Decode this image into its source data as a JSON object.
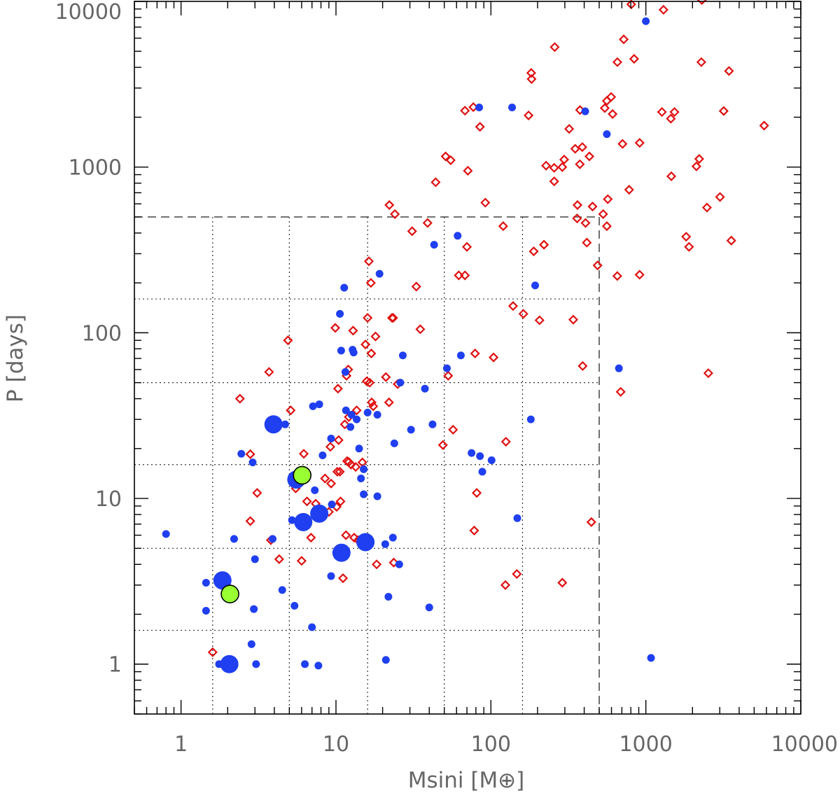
{
  "chart_data": {
    "type": "scatter",
    "title": "",
    "xlabel": "Msini [M⊕]",
    "ylabel": "P [days]",
    "xscale": "log",
    "yscale": "log",
    "xlim": [
      0.5,
      10000
    ],
    "ylim": [
      0.5,
      10000
    ],
    "x_ticks": [
      1,
      10,
      100,
      1000,
      10000
    ],
    "y_ticks": [
      1,
      10,
      100,
      1000,
      10000
    ],
    "x_tick_labels": [
      "1",
      "10",
      "100",
      "1000",
      "10000"
    ],
    "y_tick_labels": [
      "1",
      "10",
      "100",
      "1000",
      "10000"
    ],
    "grid": {
      "outer_box_dashed": {
        "x_max": 500,
        "y_max": 500
      },
      "dotted_x": [
        1.6,
        5,
        16,
        50,
        160
      ],
      "dotted_y": [
        1.6,
        5,
        16,
        50,
        160
      ]
    },
    "colors": {
      "blue": "#1f3ff0",
      "red": "#e01010",
      "green": "#99ff33",
      "axis": "#000000",
      "text": "#666666"
    },
    "series": [
      {
        "marker": "open-diamond",
        "color": "#e01010",
        "points": [
          [
            1.6,
            1.18
          ],
          [
            2.8,
            7.3
          ],
          [
            3.1,
            10.8
          ],
          [
            4.3,
            4.3
          ],
          [
            3.8,
            5.6
          ],
          [
            2.4,
            40
          ],
          [
            3.7,
            58
          ],
          [
            2.8,
            18.5
          ],
          [
            5.1,
            34
          ],
          [
            4.9,
            90
          ],
          [
            5.5,
            11.5
          ],
          [
            6.0,
            4.2
          ],
          [
            6.5,
            9.6
          ],
          [
            6.2,
            18.6
          ],
          [
            6.9,
            5.8
          ],
          [
            7.4,
            9.3
          ],
          [
            8.5,
            13.2
          ],
          [
            9.0,
            8.3
          ],
          [
            9.2,
            20.5
          ],
          [
            9.3,
            12.3
          ],
          [
            9.9,
            107
          ],
          [
            10.1,
            8.9
          ],
          [
            10.2,
            14.5
          ],
          [
            10.3,
            46
          ],
          [
            10.4,
            22.5
          ],
          [
            10.6,
            14.5
          ],
          [
            10.7,
            9.6
          ],
          [
            11.1,
            3.3
          ],
          [
            11.4,
            28
          ],
          [
            11.6,
            6
          ],
          [
            11.7,
            55
          ],
          [
            11.8,
            16.8
          ],
          [
            12.0,
            60
          ],
          [
            12.1,
            16.6
          ],
          [
            12.1,
            31
          ],
          [
            12.5,
            16
          ],
          [
            12.9,
            103
          ],
          [
            13.1,
            5.8
          ],
          [
            13.4,
            15.5
          ],
          [
            13.6,
            34
          ],
          [
            13.9,
            5.6
          ],
          [
            14.8,
            16.5
          ],
          [
            15.5,
            85
          ],
          [
            15.8,
            51
          ],
          [
            16.0,
            123
          ],
          [
            16.3,
            270
          ],
          [
            16.5,
            50
          ],
          [
            16.8,
            200
          ],
          [
            16.9,
            75
          ],
          [
            17.0,
            38
          ],
          [
            17.4,
            36
          ],
          [
            18.0,
            95
          ],
          [
            18.3,
            4
          ],
          [
            21.0,
            54
          ],
          [
            22.0,
            38
          ],
          [
            22.1,
            590
          ],
          [
            23.0,
            123
          ],
          [
            23.4,
            123
          ],
          [
            23.6,
            4.1
          ],
          [
            24.0,
            520
          ],
          [
            25.0,
            49
          ],
          [
            31.0,
            410
          ],
          [
            33.0,
            190
          ],
          [
            35.0,
            105
          ],
          [
            39.0,
            460
          ],
          [
            44.0,
            810
          ],
          [
            49.0,
            21
          ],
          [
            51.0,
            1160
          ],
          [
            53.0,
            55
          ],
          [
            55.0,
            1100
          ],
          [
            57.0,
            26
          ],
          [
            62.0,
            222
          ],
          [
            68.0,
            222
          ],
          [
            68.0,
            2190
          ],
          [
            70.0,
            330
          ],
          [
            71.0,
            950
          ],
          [
            77.0,
            2300
          ],
          [
            78.0,
            6.4
          ],
          [
            79.0,
            75
          ],
          [
            81.0,
            10.8
          ],
          [
            85.0,
            1750
          ],
          [
            92.0,
            610
          ],
          [
            104.0,
            71
          ],
          [
            120.0,
            440
          ],
          [
            124.0,
            3
          ],
          [
            125.0,
            22
          ],
          [
            139.0,
            145
          ],
          [
            147.0,
            3.5
          ],
          [
            162.0,
            130
          ],
          [
            175.0,
            2050
          ],
          [
            182.0,
            3700
          ],
          [
            183.0,
            3400
          ],
          [
            189.0,
            310
          ],
          [
            206.0,
            119
          ],
          [
            220.0,
            340
          ],
          [
            227.0,
            1020
          ],
          [
            256.0,
            820
          ],
          [
            256.0,
            990
          ],
          [
            258.0,
            5300
          ],
          [
            289.0,
            3.1
          ],
          [
            289.0,
            1000
          ],
          [
            297.0,
            1110
          ],
          [
            320.0,
            1700
          ],
          [
            340.0,
            120
          ],
          [
            350.0,
            1290
          ],
          [
            360.0,
            490
          ],
          [
            362.0,
            590
          ],
          [
            375.0,
            1040
          ],
          [
            376.0,
            2210
          ],
          [
            389.0,
            1320
          ],
          [
            391.0,
            63
          ],
          [
            408.0,
            460
          ],
          [
            416.0,
            350
          ],
          [
            432.0,
            1160
          ],
          [
            445.0,
            7.2
          ],
          [
            453.0,
            578
          ],
          [
            488.0,
            255
          ],
          [
            530.0,
            520
          ],
          [
            543.0,
            2270
          ],
          [
            560.0,
            2510
          ],
          [
            560.0,
            440
          ],
          [
            568.0,
            640
          ],
          [
            597.0,
            2650
          ],
          [
            610.0,
            2090
          ],
          [
            655.0,
            4300
          ],
          [
            654.0,
            220
          ],
          [
            688.0,
            44
          ],
          [
            707.0,
            1380
          ],
          [
            720.0,
            5900
          ],
          [
            780.0,
            730
          ],
          [
            805.0,
            9600
          ],
          [
            840.0,
            4500
          ],
          [
            911.0,
            224
          ],
          [
            912.0,
            1400
          ],
          [
            1270.0,
            2150
          ],
          [
            1300.0,
            8900
          ],
          [
            1450.0,
            1960
          ],
          [
            1460.0,
            880
          ],
          [
            1530.0,
            2150
          ],
          [
            1820.0,
            380
          ],
          [
            1900.0,
            330
          ],
          [
            2120.0,
            1010
          ],
          [
            2210.0,
            1120
          ],
          [
            2280.0,
            4300
          ],
          [
            2300.0,
            10200
          ],
          [
            2480.0,
            570
          ],
          [
            2530.0,
            57
          ],
          [
            3010.0,
            660
          ],
          [
            3180.0,
            2180
          ],
          [
            3440.0,
            3800
          ],
          [
            3560.0,
            360
          ],
          [
            5800.0,
            1780
          ]
        ]
      },
      {
        "marker": "filled-circle",
        "color": "#1f3ff0",
        "points": [
          [
            0.8,
            6.1
          ],
          [
            1.45,
            3.1
          ],
          [
            1.45,
            2.1
          ],
          [
            1.76,
            1
          ],
          [
            2.2,
            5.7
          ],
          [
            2.45,
            18.6
          ],
          [
            2.85,
            1.32
          ],
          [
            2.9,
            16.5
          ],
          [
            2.95,
            2.15
          ],
          [
            3.0,
            4.3
          ],
          [
            3.05,
            1
          ],
          [
            3.9,
            5.7
          ],
          [
            4.5,
            2.8
          ],
          [
            4.7,
            28
          ],
          [
            5.2,
            7.4
          ],
          [
            5.4,
            2.25
          ],
          [
            6.3,
            1
          ],
          [
            7.0,
            1.67
          ],
          [
            7.1,
            36
          ],
          [
            7.3,
            11.2
          ],
          [
            7.7,
            0.98
          ],
          [
            7.8,
            37
          ],
          [
            8.2,
            18.2
          ],
          [
            9.3,
            3.4
          ],
          [
            9.3,
            23
          ],
          [
            9.4,
            9.2
          ],
          [
            10.6,
            130
          ],
          [
            10.8,
            78
          ],
          [
            11.3,
            187
          ],
          [
            11.5,
            58
          ],
          [
            11.6,
            34
          ],
          [
            12.4,
            27
          ],
          [
            12.6,
            32
          ],
          [
            12.8,
            79
          ],
          [
            13.0,
            76
          ],
          [
            13.6,
            30
          ],
          [
            14.1,
            20
          ],
          [
            14.5,
            13.2
          ],
          [
            15.1,
            15
          ],
          [
            15.1,
            10.6
          ],
          [
            16.0,
            33
          ],
          [
            18.5,
            32
          ],
          [
            18.5,
            10.3
          ],
          [
            19.1,
            227
          ],
          [
            20.8,
            5.3
          ],
          [
            21.0,
            1.06
          ],
          [
            21.8,
            2.55
          ],
          [
            23.3,
            5.8
          ],
          [
            23.8,
            21.5
          ],
          [
            25.6,
            4
          ],
          [
            26.0,
            50
          ],
          [
            27.0,
            73
          ],
          [
            30.5,
            26
          ],
          [
            37.5,
            46
          ],
          [
            40.0,
            2.2
          ],
          [
            42.0,
            28
          ],
          [
            43.0,
            340
          ],
          [
            52.0,
            61
          ],
          [
            61.0,
            385
          ],
          [
            64.0,
            73
          ],
          [
            75.0,
            18.8
          ],
          [
            84.0,
            2290
          ],
          [
            85.0,
            18
          ],
          [
            88.0,
            14.5
          ],
          [
            101.0,
            17
          ],
          [
            137.0,
            2290
          ],
          [
            148.0,
            7.6
          ],
          [
            181.0,
            30
          ],
          [
            193.0,
            193
          ],
          [
            406.0,
            2170
          ],
          [
            560.0,
            1580
          ],
          [
            670.0,
            61
          ],
          [
            1000.0,
            7600
          ],
          [
            1080.0,
            1.09
          ]
        ]
      },
      {
        "marker": "large-filled-circle",
        "color": "#1f3ff0",
        "points": [
          [
            1.85,
            3.2
          ],
          [
            2.05,
            1
          ],
          [
            3.95,
            28
          ],
          [
            5.55,
            13
          ],
          [
            6.15,
            7.2
          ],
          [
            7.8,
            8.1
          ],
          [
            10.85,
            4.7
          ],
          [
            15.5,
            5.45
          ]
        ]
      },
      {
        "marker": "large-green-circle",
        "color": "#99ff33",
        "points": [
          [
            2.07,
            2.65
          ],
          [
            6.05,
            13.8
          ]
        ]
      }
    ]
  }
}
